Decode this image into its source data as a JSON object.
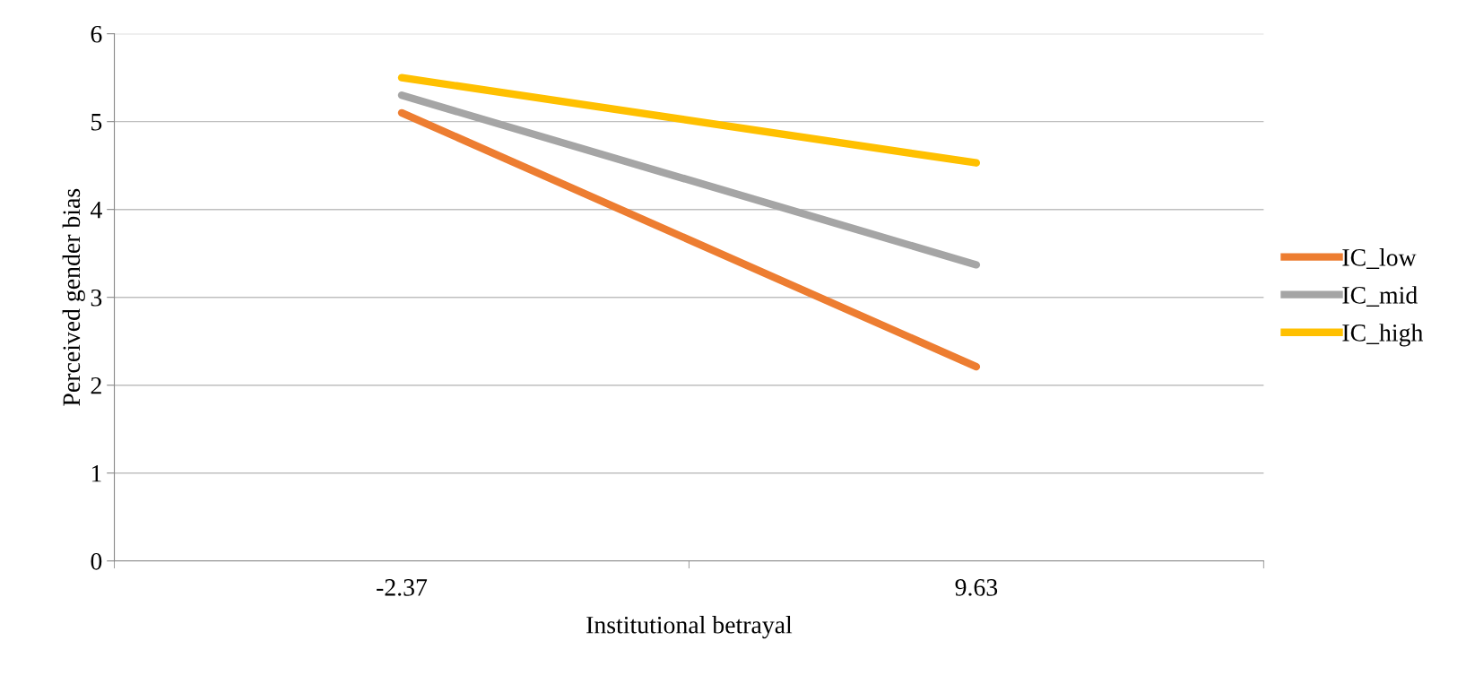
{
  "chart_data": {
    "type": "line",
    "xlabel": "Institutional betrayal",
    "ylabel": "Perceived gender bias",
    "categories": [
      "-2.37",
      "9.63"
    ],
    "series": [
      {
        "name": "IC_low",
        "color": "#ed7d31",
        "values": [
          5.1,
          2.21
        ]
      },
      {
        "name": "IC_mid",
        "color": "#a5a5a5",
        "values": [
          5.3,
          3.37
        ]
      },
      {
        "name": "IC_high",
        "color": "#ffc000",
        "values": [
          5.5,
          4.53
        ]
      }
    ],
    "ylim": [
      0,
      6
    ],
    "yticks": [
      0,
      1,
      2,
      3,
      4,
      5,
      6
    ],
    "grid": "y",
    "legend": "right",
    "marker": "none",
    "line_style": "solid"
  }
}
